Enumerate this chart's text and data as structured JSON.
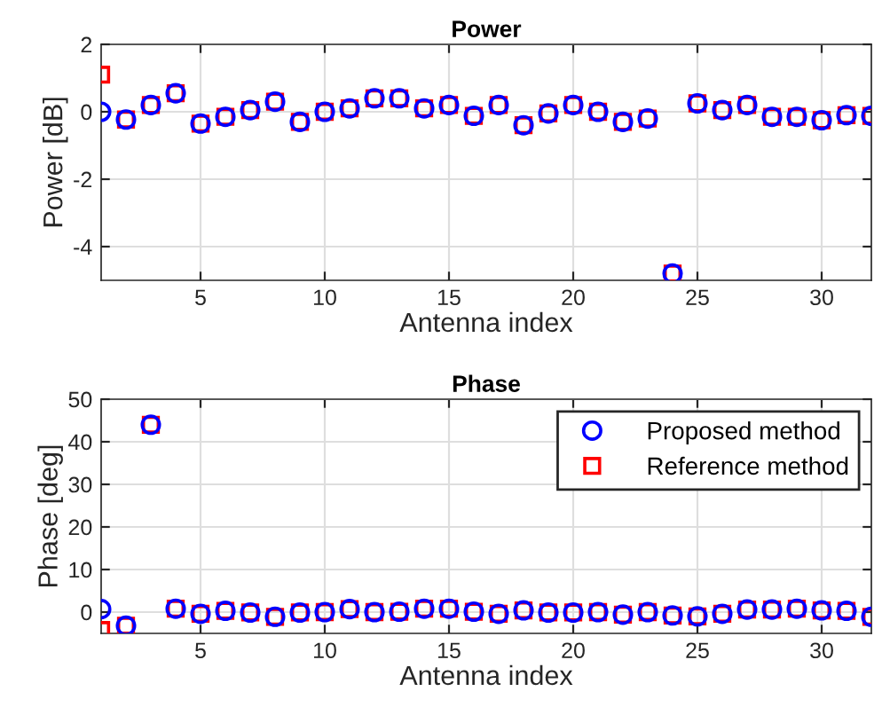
{
  "chart_data": [
    {
      "type": "scatter",
      "title": "Power",
      "xlabel": "Antenna index",
      "ylabel": "Power [dB]",
      "xlim": [
        1,
        32
      ],
      "xticks": [
        5,
        10,
        15,
        20,
        25,
        30
      ],
      "ylim": [
        -5,
        2
      ],
      "yticks": [
        -4,
        -2,
        0,
        2
      ],
      "grid": true,
      "legend": false,
      "x": [
        1,
        2,
        3,
        4,
        5,
        6,
        7,
        8,
        9,
        10,
        11,
        12,
        13,
        14,
        15,
        16,
        17,
        18,
        19,
        20,
        21,
        22,
        23,
        24,
        25,
        26,
        27,
        28,
        29,
        30,
        31,
        32
      ],
      "series": [
        {
          "color": "#ff0000",
          "marker": "square",
          "values": [
            1.1,
            -0.23,
            0.2,
            0.55,
            -0.35,
            -0.15,
            0.05,
            0.3,
            -0.3,
            0,
            0.1,
            0.4,
            0.4,
            0.1,
            0.2,
            -0.12,
            0.2,
            -0.4,
            -0.05,
            0.2,
            0,
            -0.3,
            -0.2,
            -4.8,
            0.25,
            0.05,
            0.2,
            -0.15,
            -0.15,
            -0.25,
            -0.1,
            -0.12
          ]
        },
        {
          "color": "#0000ff",
          "marker": "circle",
          "values": [
            0,
            -0.23,
            0.2,
            0.55,
            -0.35,
            -0.15,
            0.05,
            0.3,
            -0.3,
            0,
            0.1,
            0.4,
            0.4,
            0.1,
            0.2,
            -0.12,
            0.2,
            -0.4,
            -0.05,
            0.2,
            0,
            -0.3,
            -0.2,
            -4.8,
            0.25,
            0.05,
            0.2,
            -0.15,
            -0.15,
            -0.25,
            -0.1,
            -0.12
          ]
        }
      ]
    },
    {
      "type": "scatter",
      "title": "Phase",
      "xlabel": "Antenna index",
      "ylabel": "Phase [deg]",
      "xlim": [
        1,
        32
      ],
      "xticks": [
        5,
        10,
        15,
        20,
        25,
        30
      ],
      "ylim": [
        -5,
        50
      ],
      "yticks": [
        0,
        10,
        20,
        30,
        40,
        50
      ],
      "grid": true,
      "legend": "top right",
      "x": [
        1,
        2,
        3,
        4,
        5,
        6,
        7,
        8,
        9,
        10,
        11,
        12,
        13,
        14,
        15,
        16,
        17,
        18,
        19,
        20,
        21,
        22,
        23,
        24,
        25,
        26,
        27,
        28,
        29,
        30,
        31,
        32
      ],
      "series": [
        {
          "name": "Reference method",
          "color": "#ff0000",
          "marker": "square",
          "values": [
            -4.2,
            -3.2,
            44,
            0.8,
            -0.4,
            0.3,
            -0.1,
            -1.1,
            -0.1,
            0,
            0.7,
            0,
            0.1,
            0.8,
            0.8,
            0.1,
            -0.4,
            0.4,
            -0.1,
            -0.1,
            0,
            -0.6,
            0,
            -0.8,
            -1,
            -0.4,
            0.6,
            0.6,
            0.8,
            0.4,
            0.3,
            -1.1
          ]
        },
        {
          "name": "Proposed method",
          "color": "#0000ff",
          "marker": "circle",
          "values": [
            0.7,
            -3.2,
            44,
            0.8,
            -0.4,
            0.3,
            -0.1,
            -1.1,
            -0.1,
            0,
            0.7,
            0,
            0.1,
            0.8,
            0.8,
            0.1,
            -0.4,
            0.4,
            -0.1,
            -0.1,
            0,
            -0.6,
            0,
            -0.8,
            -1,
            -0.4,
            0.6,
            0.6,
            0.8,
            0.4,
            0.3,
            -1.1
          ]
        }
      ]
    }
  ]
}
